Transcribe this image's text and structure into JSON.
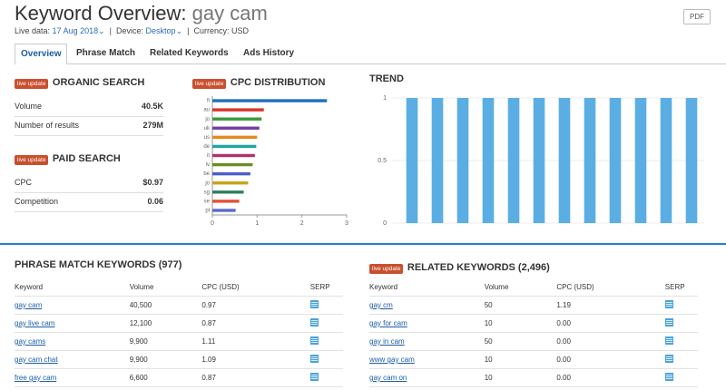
{
  "header": {
    "title": "Keyword Overview:",
    "keyword": "gay cam",
    "pdf": "PDF",
    "live_label": "Live data:",
    "live_date": "17 Aug 2018",
    "device_label": "Device:",
    "device": "Desktop",
    "currency": "Currency: USD"
  },
  "tabs": [
    "Overview",
    "Phrase Match",
    "Related Keywords",
    "Ads History"
  ],
  "organic": {
    "badge": "live update",
    "title": "ORGANIC SEARCH",
    "rows": [
      [
        "Volume",
        "40.5K"
      ],
      [
        "Number of results",
        "279M"
      ]
    ]
  },
  "paid": {
    "badge": "live update",
    "title": "PAID SEARCH",
    "rows": [
      [
        "CPC",
        "$0.97"
      ],
      [
        "Competition",
        "0.06"
      ]
    ]
  },
  "chart_data": [
    {
      "type": "hbar",
      "title": "CPC DISTRIBUTION",
      "badge": "live update",
      "categories": [
        "fi",
        "au",
        "jo",
        "uk",
        "us",
        "de",
        "it",
        "lv",
        "be",
        "jo",
        "sg",
        "se",
        "pl"
      ],
      "values": [
        2.56,
        1.15,
        1.1,
        1.05,
        1.0,
        0.98,
        0.95,
        0.9,
        0.85,
        0.8,
        0.7,
        0.6,
        0.52
      ],
      "colors": [
        "#1f6fbf",
        "#d9342b",
        "#3a9a3a",
        "#7a3fa0",
        "#e8891c",
        "#1fa3a3",
        "#b3306a",
        "#6b8e23",
        "#4b5fc7",
        "#c9a21b",
        "#2f7f5f",
        "#e0523a",
        "#5a6ad0"
      ],
      "xlim": [
        0,
        3
      ],
      "xticks": [
        0,
        1,
        2,
        3
      ]
    },
    {
      "type": "bar",
      "title": "TREND",
      "categories": [
        null,
        null,
        null,
        null,
        null,
        null,
        null,
        null,
        null,
        null,
        null,
        null
      ],
      "values": [
        1,
        1,
        1,
        1,
        1,
        1,
        1,
        1,
        1,
        1,
        1,
        1
      ],
      "color": "#5aaee3",
      "ylim": [
        0,
        1
      ],
      "yticks": [
        0,
        0.5,
        1
      ],
      "grid": true
    }
  ],
  "phrase": {
    "title": "PHRASE MATCH KEYWORDS (977)",
    "headers": [
      "Keyword",
      "Volume",
      "CPC (USD)",
      "SERP"
    ],
    "rows": [
      [
        "gay cam",
        "40,500",
        "0.97"
      ],
      [
        "gay live cam",
        "12,100",
        "0.87"
      ],
      [
        "gay cams",
        "9,900",
        "1.11"
      ],
      [
        "gay cam chat",
        "9,900",
        "1.09"
      ],
      [
        "free gay cam",
        "6,600",
        "0.87"
      ]
    ]
  },
  "related": {
    "badge": "live update",
    "title": "RELATED KEYWORDS (2,496)",
    "headers": [
      "Keyword",
      "Volume",
      "CPC (USD)",
      "SERP"
    ],
    "rows": [
      [
        "gay cm",
        "50",
        "1.19"
      ],
      [
        "gay for cam",
        "10",
        "0.00"
      ],
      [
        "gay in cam",
        "50",
        "0.00"
      ],
      [
        "www gay cam",
        "10",
        "0.00"
      ],
      [
        "gay cam on",
        "10",
        "0.00"
      ]
    ]
  }
}
